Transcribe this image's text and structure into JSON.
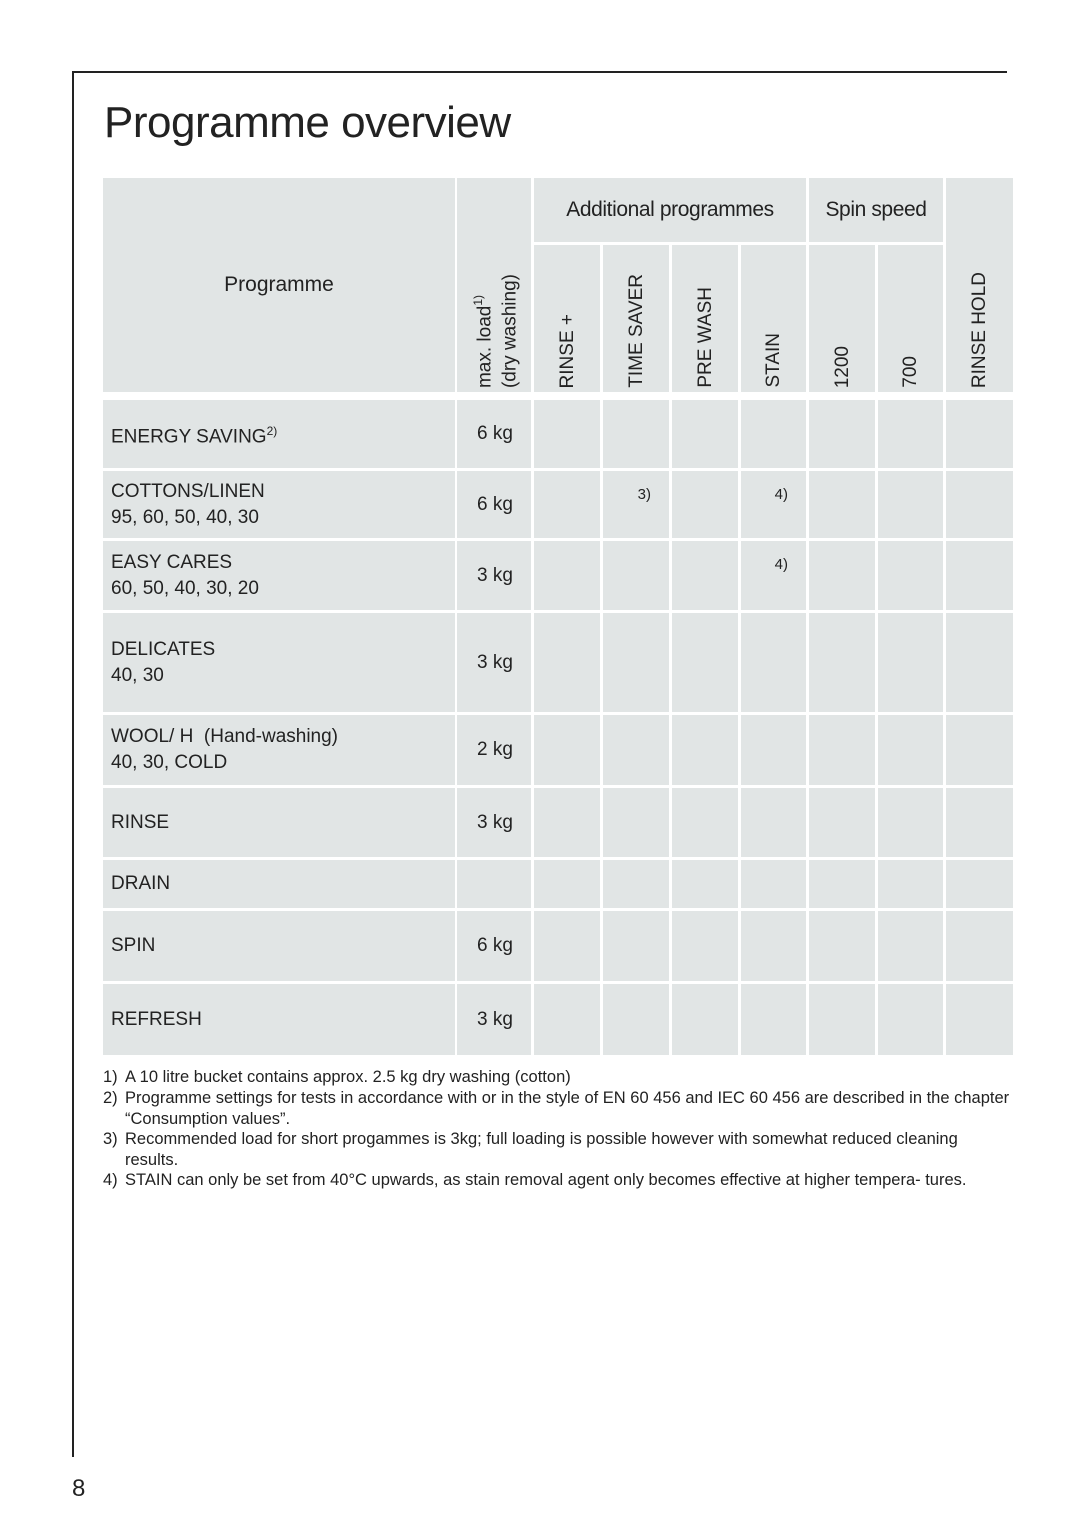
{
  "title": "Programme overview",
  "table": {
    "header": {
      "programme": "Programme",
      "max_load": {
        "line1": "max. load",
        "sup": "1)",
        "line2": "(dry washing)"
      },
      "groups": {
        "additional": "Additional programmes",
        "spin": "Spin speed"
      },
      "columns": {
        "rinse_plus": "RINSE +",
        "time_saver": "TIME SAVER",
        "pre_wash": "PRE WASH",
        "stain": "STAIN",
        "spin_1200": "1200",
        "spin_700": "700",
        "rinse_hold": "RINSE HOLD"
      }
    },
    "rows": [
      {
        "name": "ENERGY SAVING",
        "sup": "2)",
        "load": "6 kg"
      },
      {
        "name": "COTTONS/LINEN",
        "temps": "95, 60, 50, 40, 30",
        "load": "6 kg",
        "notes": {
          "time_saver": "3)",
          "stain": "4)"
        }
      },
      {
        "name": "EASY CARES",
        "temps": "60, 50, 40, 30, 20",
        "load": "3 kg",
        "notes": {
          "stain": "4)"
        }
      },
      {
        "name": "DELICATES",
        "temps": "40, 30",
        "load": "3 kg"
      },
      {
        "name": "WOOL/ H  (Hand-washing)",
        "temps": "40, 30, COLD",
        "load": "2 kg"
      },
      {
        "name": "RINSE",
        "load": "3 kg"
      },
      {
        "name": "DRAIN"
      },
      {
        "name": "SPIN",
        "load": "6 kg"
      },
      {
        "name": "REFRESH",
        "load": "3 kg"
      }
    ]
  },
  "footnotes": [
    {
      "num": "1)",
      "text": "A 10 litre bucket contains approx. 2.5 kg dry washing (cotton)"
    },
    {
      "num": "2)",
      "text": "Programme settings for tests in accordance with or in the style of EN 60 456 and IEC 60 456 are described in the chapter “Consumption values”."
    },
    {
      "num": "3)",
      "text": "Recommended load for short progammes is 3kg; full loading is possible however with somewhat reduced cleaning results."
    },
    {
      "num": "4)",
      "text": "STAIN can only be set from 40°C upwards, as stain removal agent only becomes effective at higher tempera- tures."
    }
  ],
  "page_number": "8"
}
